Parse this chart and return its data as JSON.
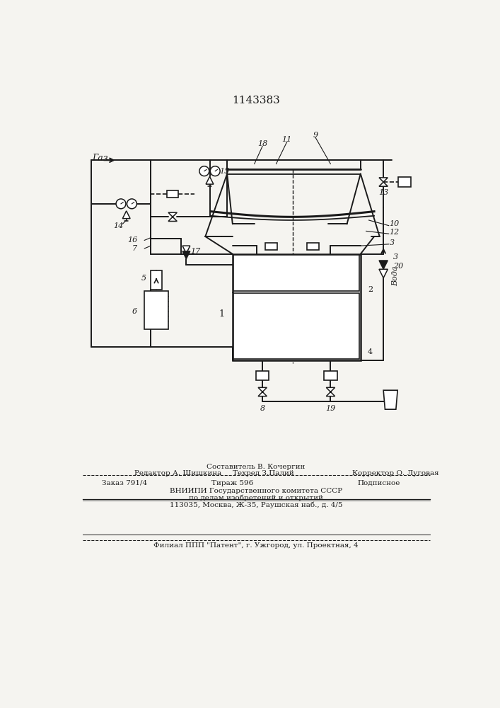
{
  "title": "1143383",
  "bg": "#f5f4f0",
  "lc": "#1a1a1a",
  "diagram": {
    "gas_label": "Газ",
    "water_label": "вода",
    "numbers": {
      "1": "1",
      "2": "2",
      "3": "3",
      "4": "4",
      "5": "5",
      "6": "6",
      "7": "7",
      "8": "8",
      "9": "9",
      "10": "10",
      "11": "11",
      "12": "12",
      "13": "13",
      "14": "14",
      "15": "15",
      "16": "16",
      "17": "17",
      "18": "18",
      "19": "19",
      "20": "20"
    }
  },
  "footer": {
    "line1_center": "Составитель В. Кочергин",
    "line1_left": "Редактор А. Шишкина",
    "line1_center2": "Техред З.Палий",
    "line1_right": "Корректор О. Луговая",
    "line2_left": "Заказ 791/4",
    "line2_center": "Тираж 596",
    "line2_right": "Подписное",
    "line3": "ВНИИПИ Государственного комитета СССР",
    "line4": "по делам изобретений и открытий",
    "line5": "113035, Москва, Ж-35, Раушская наб., д. 4/5",
    "line6": "Филиал ППП \"Патент\", г. Ужгород, ул. Проектная, 4"
  }
}
